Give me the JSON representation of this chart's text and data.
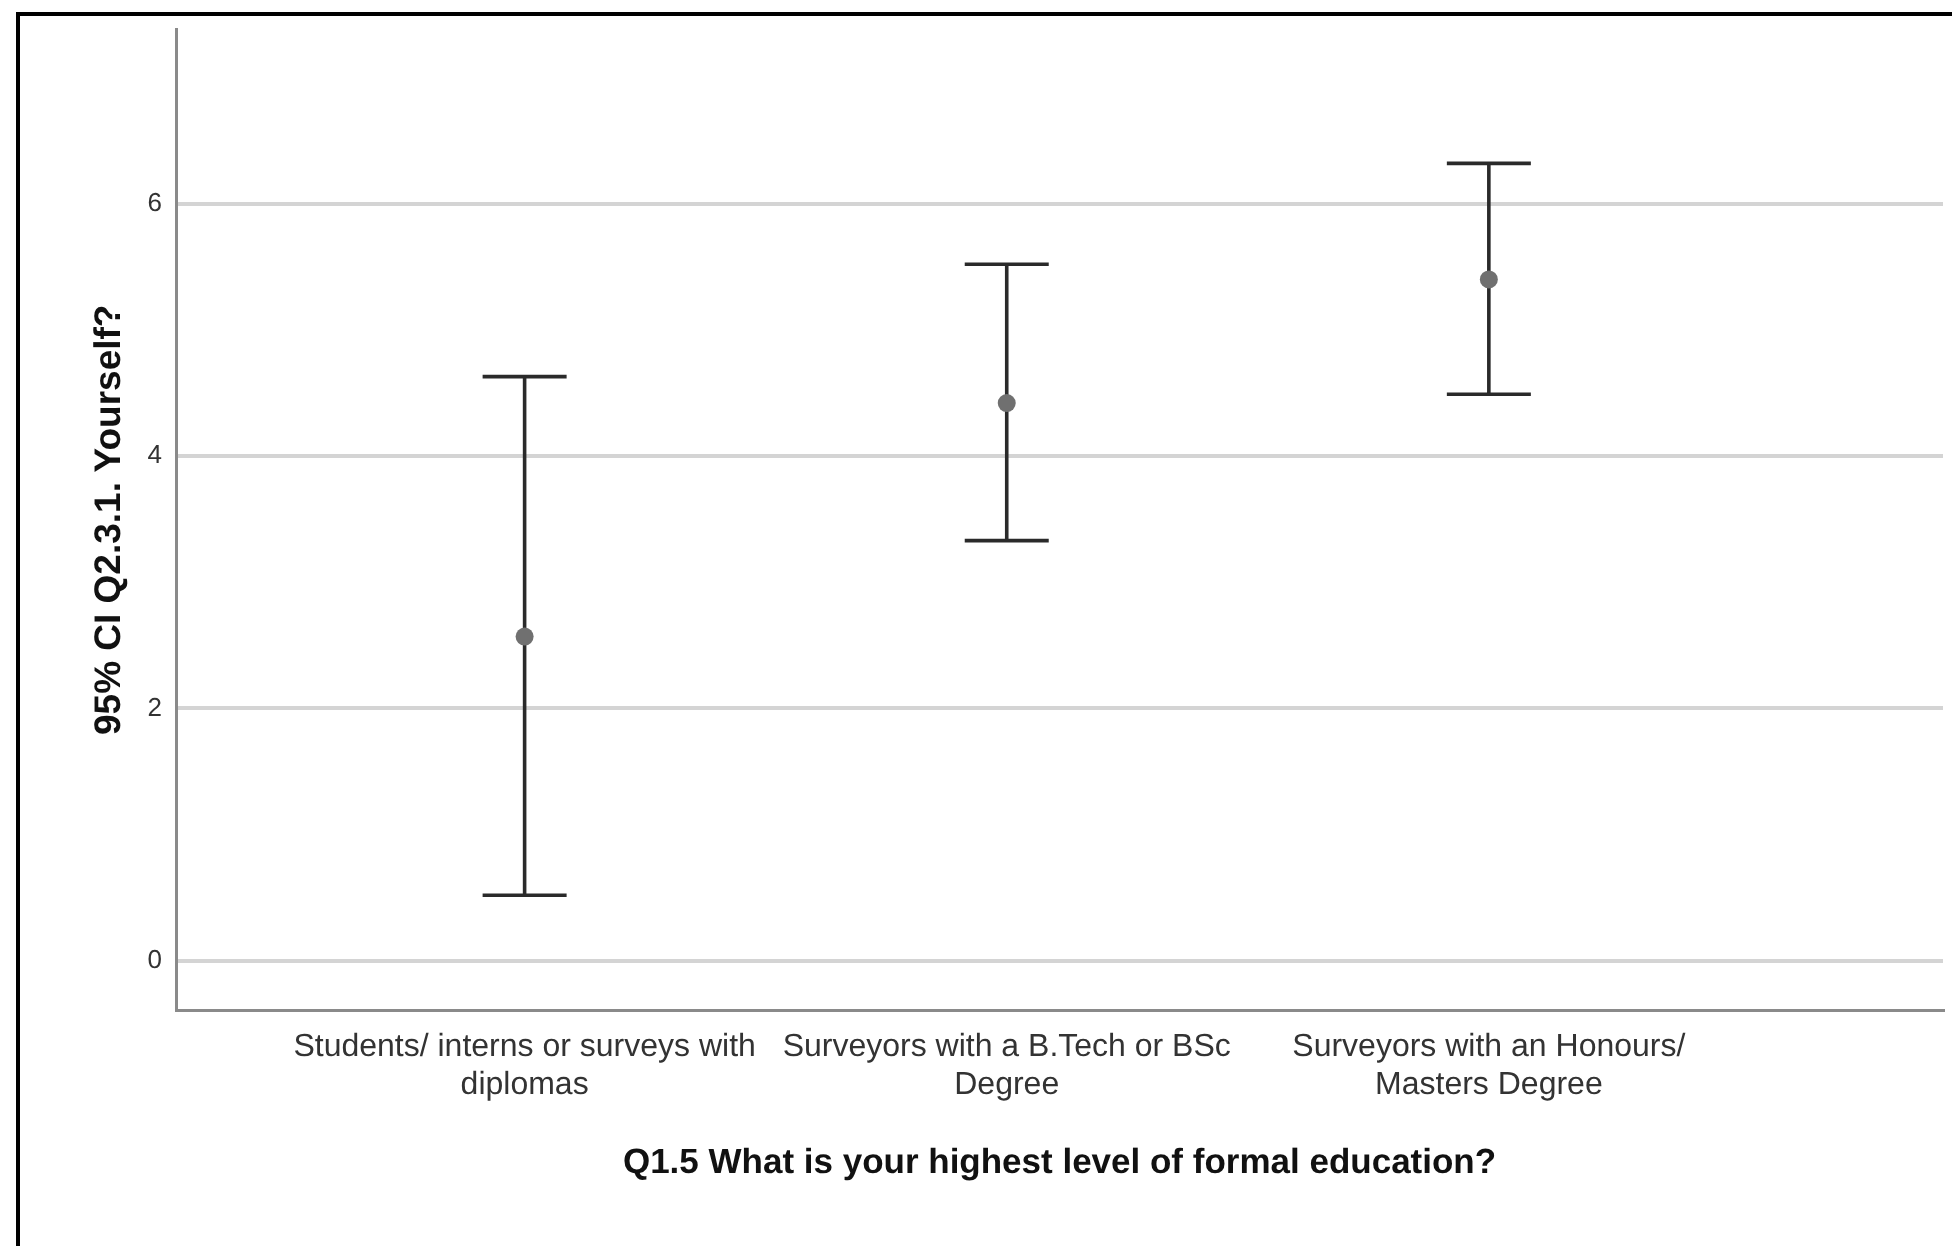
{
  "chart_data": {
    "type": "scatter",
    "ylabel": "95% CI Q2.3.1. Yourself?",
    "xlabel": "Q1.5 What is your highest level of formal education?",
    "categories": [
      "Students/ interns or surveys with diplomas",
      "Surveyors with a B.Tech or BSc Degree",
      "Surveyors with an Honours/ Masters Degree"
    ],
    "values": [
      2.57,
      4.42,
      5.4
    ],
    "errors": [
      [
        0.52,
        4.63
      ],
      [
        3.33,
        5.52
      ],
      [
        4.49,
        6.32
      ]
    ],
    "color": "#707070",
    "marker": "circle",
    "ylim": [
      -0.39,
      7.38
    ],
    "yticks": [
      0,
      2,
      4,
      6
    ],
    "grid": "y",
    "legend": false
  }
}
